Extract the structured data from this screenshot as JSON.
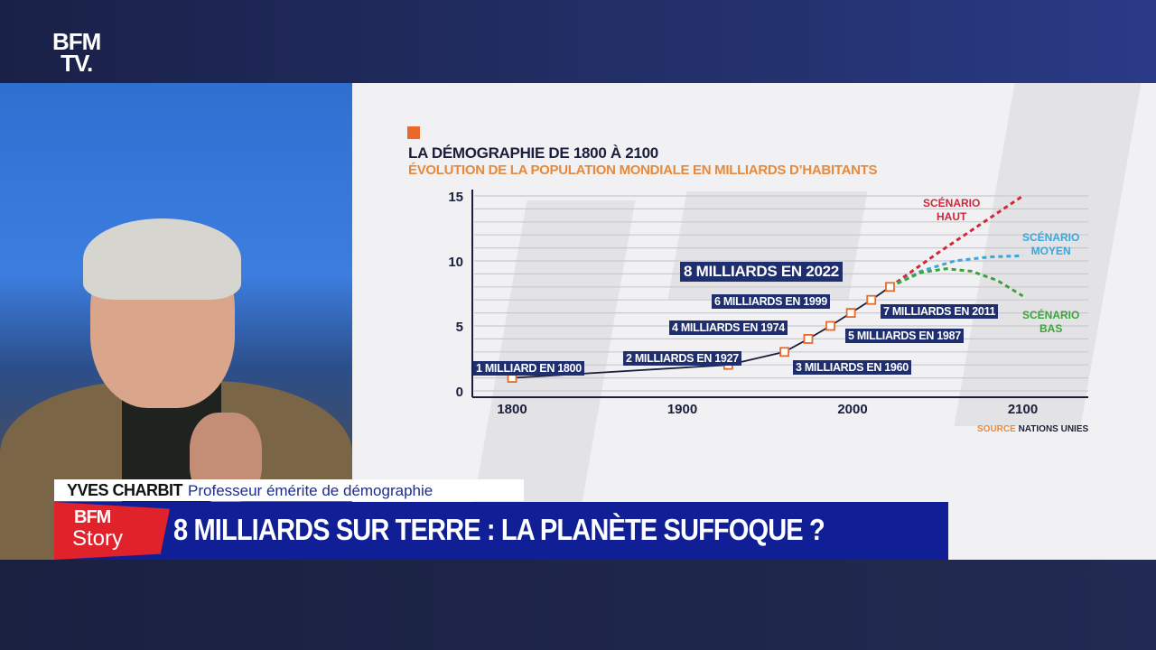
{
  "channel": {
    "logo_line1": "BFM",
    "logo_line2": "TV."
  },
  "lower_third": {
    "guest_name": "YVES CHARBIT",
    "guest_role": "Professeur émérite de démographie",
    "show_logo_line1": "BFM",
    "show_logo_line2": "Story",
    "headline": "8 MILLIARDS SUR TERRE : LA PLANÈTE SUFFOQUE ?"
  },
  "colors": {
    "accent_orange": "#e8692a",
    "label_navy": "#1e2e6e",
    "headline_blue": "#101f96",
    "scenario_high": "#d0283a",
    "scenario_mid": "#3aa6dc",
    "scenario_low": "#3aa43a"
  },
  "chart_data": {
    "type": "line",
    "title": "LA DÉMOGRAPHIE DE 1800 À 2100",
    "subtitle": "ÉVOLUTION DE LA POPULATION MONDIALE EN MILLIARDS D’HABITANTS",
    "xlabel": "",
    "ylabel": "",
    "xlim": [
      1775,
      2140
    ],
    "ylim": [
      0,
      15
    ],
    "xticks": [
      "1800",
      "1900",
      "2000",
      "2100"
    ],
    "yticks": [
      "0",
      "5",
      "10",
      "15"
    ],
    "grid": true,
    "source_label": "SOURCE",
    "source": "NATIONS UNIES",
    "points": [
      {
        "x": 1800,
        "y": 1,
        "label": "1 MILLIARD EN 1800"
      },
      {
        "x": 1927,
        "y": 2,
        "label": "2 MILLIARDS EN 1927"
      },
      {
        "x": 1960,
        "y": 3,
        "label": "3 MILLIARDS EN 1960"
      },
      {
        "x": 1974,
        "y": 4,
        "label": "4 MILLIARDS EN 1974"
      },
      {
        "x": 1987,
        "y": 5,
        "label": "5 MILLIARDS EN 1987"
      },
      {
        "x": 1999,
        "y": 6,
        "label": "6 MILLIARDS EN 1999"
      },
      {
        "x": 2011,
        "y": 7,
        "label": "7 MILLIARDS EN 2011"
      },
      {
        "x": 2022,
        "y": 8,
        "label": "8 MILLIARDS EN 2022"
      }
    ],
    "series": [
      {
        "name": "SCÉNARIO HAUT",
        "x": [
          2022,
          2050,
          2075,
          2100
        ],
        "y": [
          8,
          10.6,
          12.8,
          15
        ]
      },
      {
        "name": "SCÉNARIO MOYEN",
        "x": [
          2022,
          2040,
          2060,
          2080,
          2100
        ],
        "y": [
          8,
          9.2,
          10,
          10.3,
          10.4
        ]
      },
      {
        "name": "SCÉNARIO BAS",
        "x": [
          2022,
          2040,
          2055,
          2070,
          2085,
          2100
        ],
        "y": [
          8,
          9.1,
          9.4,
          9.2,
          8.5,
          7.3
        ]
      }
    ],
    "scenario_labels": [
      [
        "SCÉNARIO",
        "HAUT"
      ],
      [
        "SCÉNARIO",
        "MOYEN"
      ],
      [
        "SCÉNARIO",
        "BAS"
      ]
    ]
  }
}
